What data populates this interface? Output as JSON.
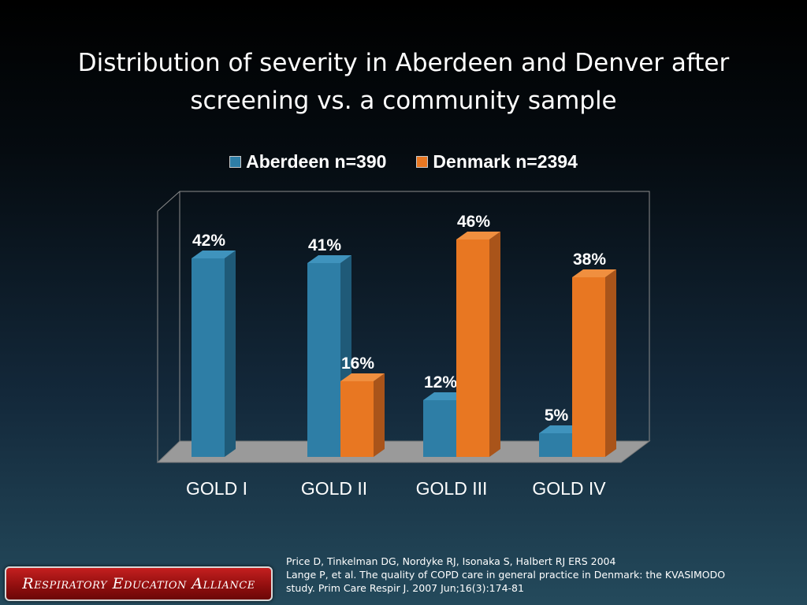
{
  "slide": {
    "title_line1": "Distribution of severity in Aberdeen and Denver after",
    "title_line2": "screening vs. a community sample"
  },
  "citation": {
    "line1": "Price D, Tinkelman DG, Nordyke RJ, Isonaka S, Halbert RJ ERS 2004",
    "line2": "Lange P, et al. The quality of COPD care in general practice in Denmark: the KVASIMODO",
    "line3": "study. Prim Care Respir J. 2007 Jun;16(3):174-81"
  },
  "logo": {
    "text": "Respiratory Education Alliance"
  },
  "colors": {
    "aberdeen": "#2e7ea6",
    "denmark": "#e87722",
    "floor": "#9a9a9a"
  },
  "chart_data": {
    "type": "bar",
    "categories": [
      "GOLD I",
      "GOLD II",
      "GOLD III",
      "GOLD IV"
    ],
    "series": [
      {
        "name": "Aberdeen n=390",
        "values": [
          42,
          41,
          12,
          5
        ],
        "labels": [
          "42%",
          "41%",
          "12%",
          "5%"
        ]
      },
      {
        "name": "Denmark n=2394",
        "values": [
          null,
          16,
          46,
          38
        ],
        "labels": [
          "",
          "16%",
          "46%",
          "38%"
        ]
      }
    ],
    "ylim": [
      0,
      50
    ],
    "grid": false,
    "legend": "top-center"
  }
}
